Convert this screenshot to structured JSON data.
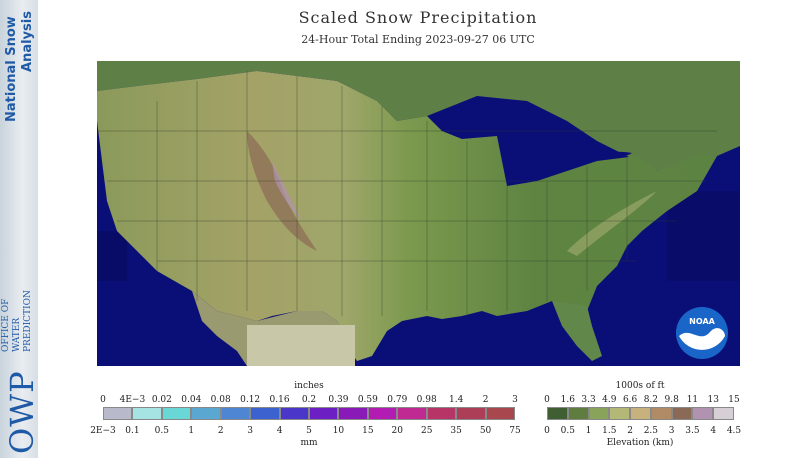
{
  "sidebar": {
    "line1": "National Snow",
    "line2": "Analysis",
    "owp": "OWP",
    "owp_sub1": "OFFICE OF",
    "owp_sub2": "WATER",
    "owp_sub3": "PREDICTION"
  },
  "header": {
    "title": "Scaled Snow Precipitation",
    "subtitle": "24-Hour Total Ending 2023-09-27 06 UTC"
  },
  "precip_legend": {
    "unit_top": "inches",
    "unit_bottom": "mm",
    "inches": [
      "0",
      "4E−3",
      "0.02",
      "0.04",
      "0.08",
      "0.12",
      "0.16",
      "0.2",
      "0.39",
      "0.59",
      "0.79",
      "0.98",
      "1.4",
      "2",
      "3"
    ],
    "mm": [
      "2E−3",
      "0.1",
      "0.5",
      "1",
      "2",
      "3",
      "4",
      "5",
      "10",
      "15",
      "20",
      "25",
      "35",
      "50",
      "75"
    ],
    "colors": [
      "#b9b9cc",
      "#a6e4e4",
      "#6ad7d7",
      "#5aa7d2",
      "#4f86d4",
      "#3c62cf",
      "#4a37c9",
      "#6c1fc3",
      "#8a1ab8",
      "#b21cb3",
      "#c02892",
      "#b73466",
      "#ad3e58",
      "#a8474d"
    ]
  },
  "elev_legend": {
    "unit_top": "1000s of ft",
    "unit_bottom": "Elevation (km)",
    "feet": [
      "0",
      "1.6",
      "3.3",
      "4.9",
      "6.6",
      "8.2",
      "9.8",
      "11",
      "13",
      "15"
    ],
    "km": [
      "0",
      "0.5",
      "1",
      "1.5",
      "2",
      "2.5",
      "3",
      "3.5",
      "4",
      "4.5"
    ],
    "colors": [
      "#3f5f32",
      "#5e7d3e",
      "#89a35a",
      "#b4b877",
      "#c7b27d",
      "#b08b66",
      "#8a6956",
      "#b193b1",
      "#d6d0d6"
    ]
  },
  "logo": {
    "text": "NOAA"
  }
}
